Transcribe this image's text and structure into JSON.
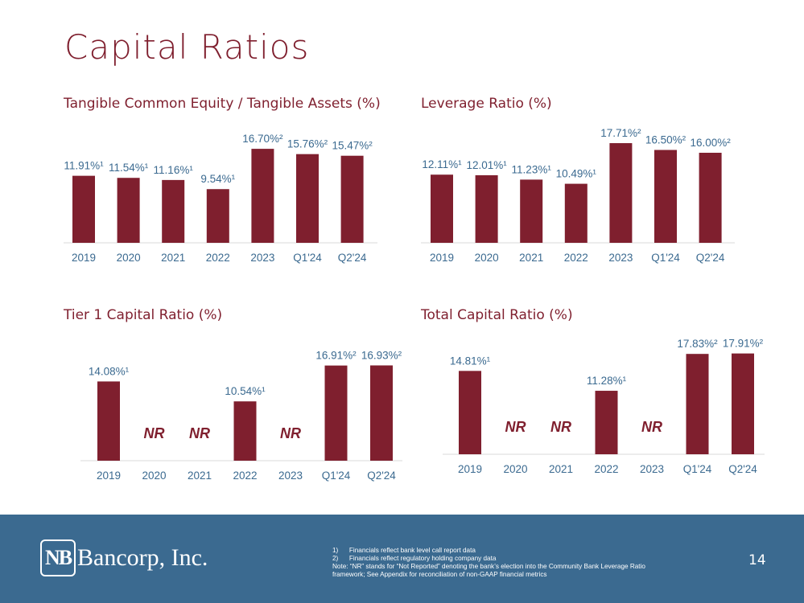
{
  "page_title": "Capital Ratios",
  "colors": {
    "bar": "#7f1f2e",
    "label": "#3b6a90",
    "title": "#7f1f2e",
    "footer": "#3b6a90"
  },
  "chart_data": [
    {
      "type": "bar",
      "title": "Tangible Common Equity / Tangible Assets (%)",
      "categories": [
        "2019",
        "2020",
        "2021",
        "2022",
        "2023",
        "Q1'24",
        "Q2'24"
      ],
      "values": [
        11.91,
        11.54,
        11.16,
        9.54,
        16.7,
        15.76,
        15.47
      ],
      "data_labels": [
        "11.91%¹",
        "11.54%¹",
        "11.16%¹",
        "9.54%¹",
        "16.70%²",
        "15.76%²",
        "15.47%²"
      ],
      "ylim": [
        0,
        20
      ]
    },
    {
      "type": "bar",
      "title": "Leverage Ratio (%)",
      "categories": [
        "2019",
        "2020",
        "2021",
        "2022",
        "2023",
        "Q1'24",
        "Q2'24"
      ],
      "values": [
        12.11,
        12.01,
        11.23,
        10.49,
        17.71,
        16.5,
        16.0
      ],
      "data_labels": [
        "12.11%¹",
        "12.01%¹",
        "11.23%¹",
        "10.49%¹",
        "17.71%²",
        "16.50%²",
        "16.00%²"
      ],
      "ylim": [
        0,
        20
      ]
    },
    {
      "type": "bar",
      "title": "Tier 1 Capital Ratio (%)",
      "categories": [
        "2019",
        "2020",
        "2021",
        "2022",
        "2023",
        "Q1'24",
        "Q2'24"
      ],
      "values": [
        14.08,
        null,
        null,
        10.54,
        null,
        16.91,
        16.93
      ],
      "data_labels": [
        "14.08%¹",
        "NR",
        "NR",
        "10.54%¹",
        "NR",
        "16.91%²",
        "16.93%²"
      ],
      "ylim": [
        0,
        20
      ]
    },
    {
      "type": "bar",
      "title": "Total Capital Ratio (%)",
      "categories": [
        "2019",
        "2020",
        "2021",
        "2022",
        "2023",
        "Q1'24",
        "Q2'24"
      ],
      "values": [
        14.81,
        null,
        null,
        11.28,
        null,
        17.83,
        17.91
      ],
      "data_labels": [
        "14.81%¹",
        "NR",
        "NR",
        "11.28%¹",
        "NR",
        "17.83%²",
        "17.91%²"
      ],
      "ylim": [
        0,
        20
      ]
    }
  ],
  "footer": {
    "logo_mark": "NB",
    "logo_text": "Bancorp, Inc.",
    "notes": [
      "1)      Financials reflect bank level call report data",
      "2)      Financials reflect regulatory holding company data",
      "Note: “NR” stands for “Not Reported” denoting the bank’s election into the Community Bank Leverage Ratio framework; See Appendix for reconciliation of non-GAAP financial metrics"
    ],
    "page_number": "14"
  }
}
